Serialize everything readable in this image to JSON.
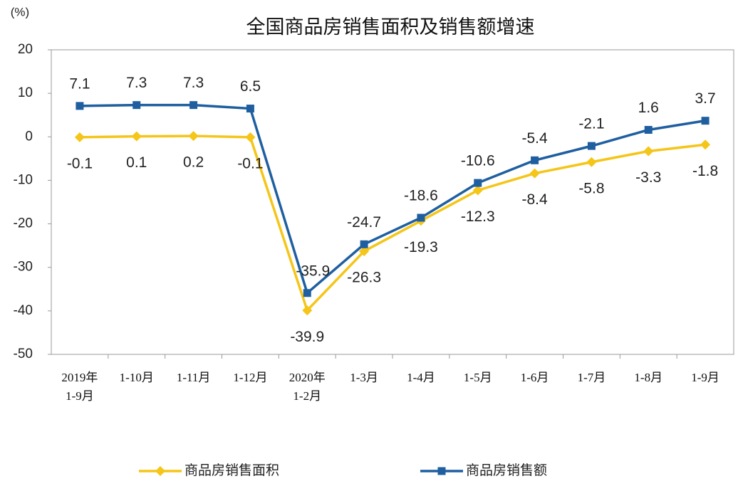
{
  "chart_data": {
    "type": "line",
    "title": "全国商品房销售面积及销售额增速",
    "y_label": "(%)",
    "categories": [
      [
        "2019年",
        "1-9月"
      ],
      "1-10月",
      "1-11月",
      "1-12月",
      [
        "2020年",
        "1-2月"
      ],
      "1-3月",
      "1-4月",
      "1-5月",
      "1-6月",
      "1-7月",
      "1-8月",
      "1-9月"
    ],
    "series": [
      {
        "name": "商品房销售面积",
        "color": "#f5c518",
        "marker": "diamond",
        "values": [
          -0.1,
          0.1,
          0.2,
          -0.1,
          -39.9,
          -26.3,
          -19.3,
          -12.3,
          -8.4,
          -5.8,
          -3.3,
          -1.8
        ]
      },
      {
        "name": "商品房销售额",
        "color": "#1f5fa0",
        "marker": "square",
        "values": [
          7.1,
          7.3,
          7.3,
          6.5,
          -35.9,
          -24.7,
          -18.6,
          -10.6,
          -5.4,
          -2.1,
          1.6,
          3.7
        ]
      }
    ],
    "ylim": [
      -50,
      20
    ],
    "yticks": [
      -50,
      -40,
      -30,
      -20,
      -10,
      0,
      10,
      20
    ],
    "grid": false,
    "legend": "bottom"
  }
}
